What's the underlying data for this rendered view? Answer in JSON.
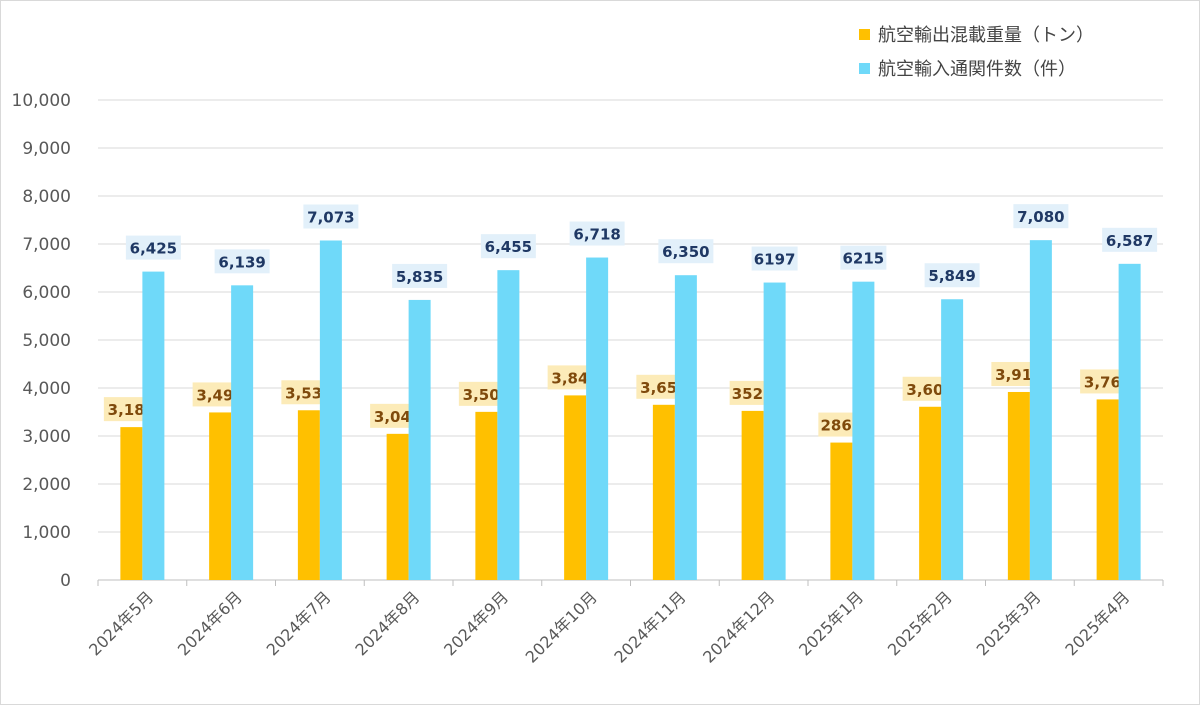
{
  "colors": {
    "export": "#FFC000",
    "import": "#6FD9F9",
    "export_label_bg": "#FCEBB8",
    "import_label_bg": "#E2F0FA"
  },
  "legend": [
    {
      "label": "航空輸出混載重量（トン）",
      "color": "#FFC000"
    },
    {
      "label": "航空輸入通関件数（件）",
      "color": "#6FD9F9"
    }
  ],
  "chart_data": {
    "type": "bar",
    "categories": [
      "2024年5月",
      "2024年6月",
      "2024年7月",
      "2024年8月",
      "2024年9月",
      "2024年10月",
      "2024年11月",
      "2024年12月",
      "2025年1月",
      "2025年2月",
      "2025年3月",
      "2025年4月"
    ],
    "series": [
      {
        "name": "航空輸出混載重量（トン）",
        "values": [
          3185,
          3491,
          3536,
          3045,
          3503,
          3846,
          3650,
          3523,
          2863,
          3609,
          3917,
          3762
        ],
        "labels": [
          "3,185",
          "3,491",
          "3,536",
          "3,045",
          "3,503",
          "3,846",
          "3,650",
          "3523",
          "2863",
          "3,609",
          "3,917",
          "3,762"
        ]
      },
      {
        "name": "航空輸入通関件数（件）",
        "values": [
          6425,
          6139,
          7073,
          5835,
          6455,
          6718,
          6350,
          6197,
          6215,
          5849,
          7080,
          6587
        ],
        "labels": [
          "6,425",
          "6,139",
          "7,073",
          "5,835",
          "6,455",
          "6,718",
          "6,350",
          "6197",
          "6215",
          "5,849",
          "7,080",
          "6,587"
        ]
      }
    ],
    "ylim": [
      0,
      10000
    ],
    "yticks": [
      "0",
      "1,000",
      "2,000",
      "3,000",
      "4,000",
      "5,000",
      "6,000",
      "7,000",
      "8,000",
      "9,000",
      "10,000"
    ],
    "grid": true,
    "legend_position": "top-right"
  }
}
